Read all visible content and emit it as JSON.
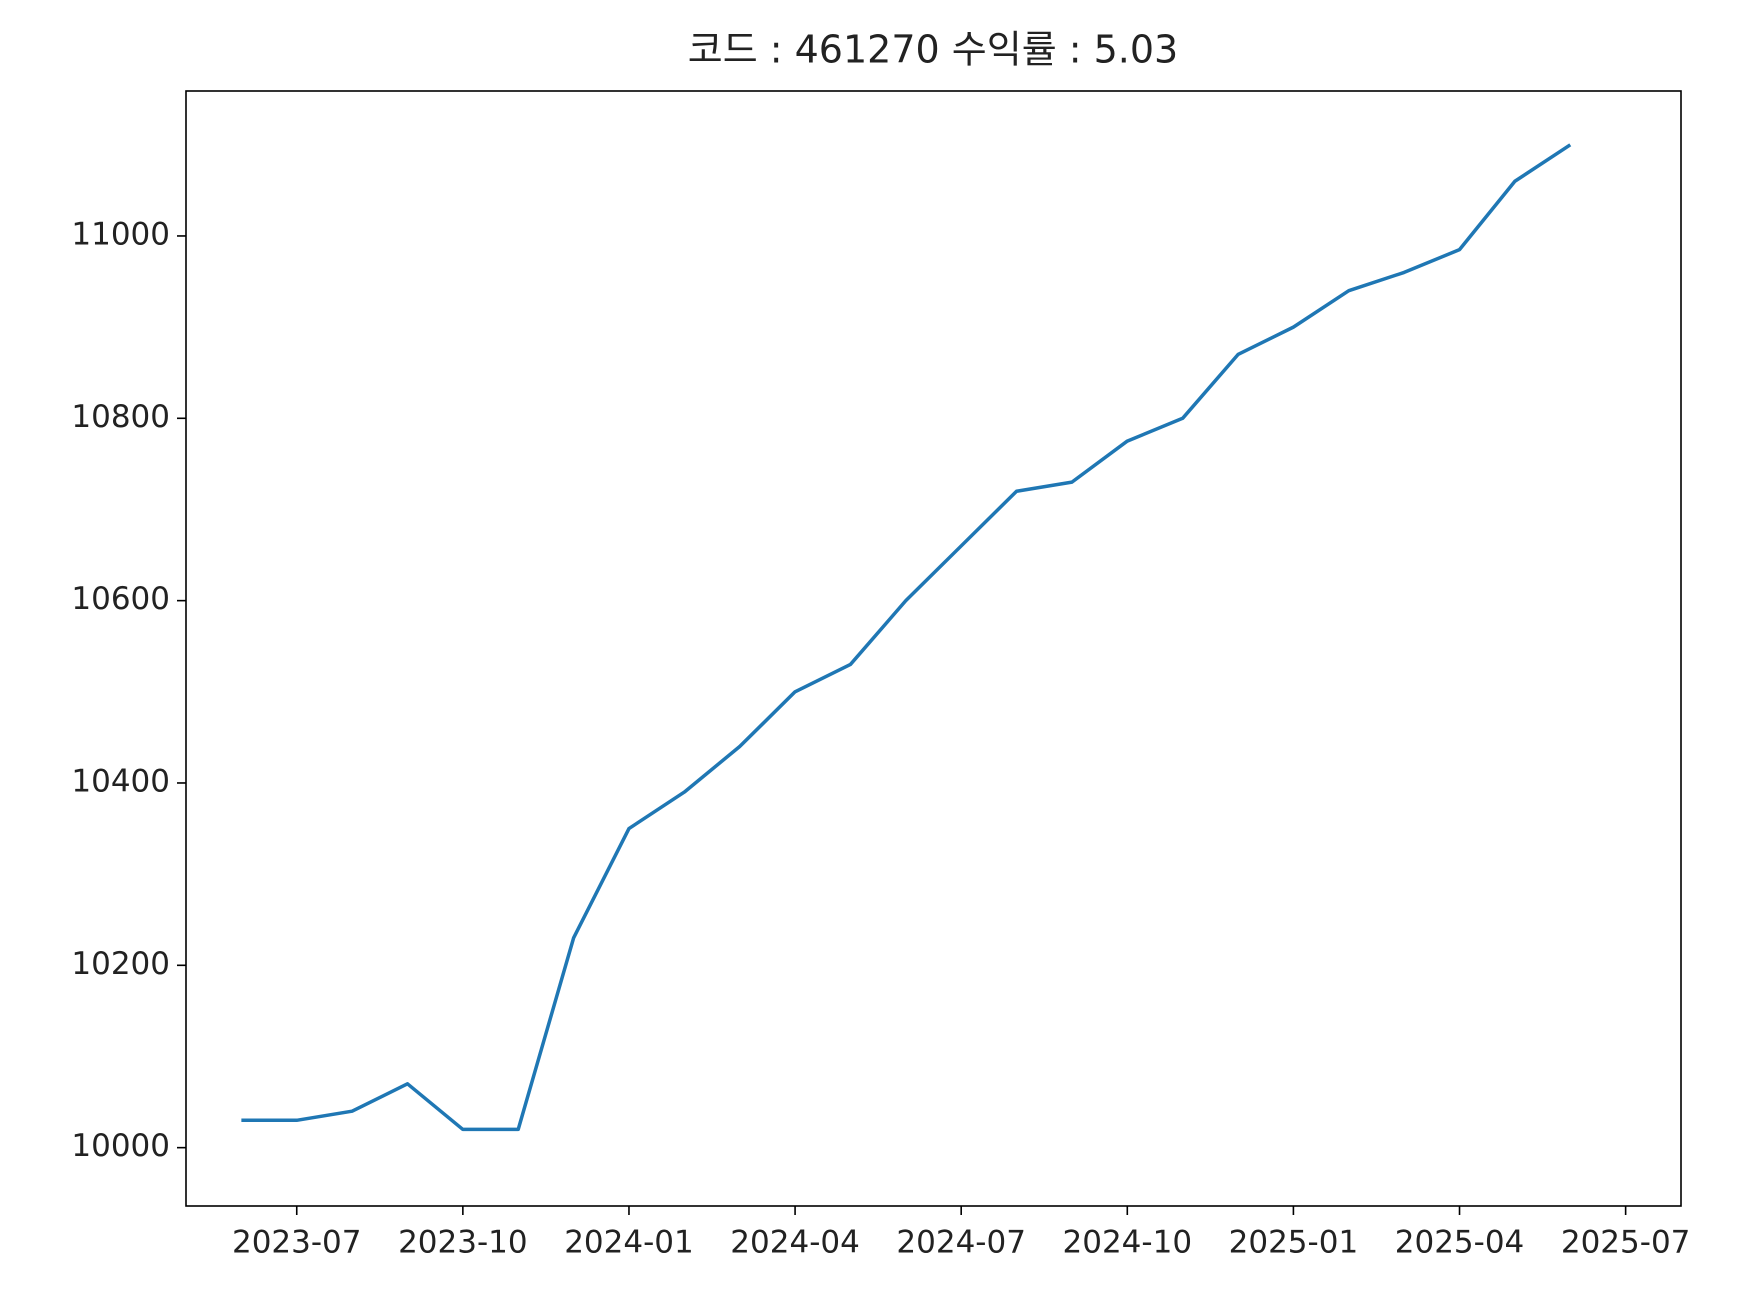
{
  "chart_data": {
    "type": "line",
    "title": "코드 : 461270 수익률 : 5.03",
    "x": [
      "2023-06",
      "2023-07",
      "2023-08",
      "2023-09",
      "2023-10",
      "2023-11",
      "2023-12",
      "2024-01",
      "2024-02",
      "2024-03",
      "2024-04",
      "2024-05",
      "2024-06",
      "2024-07",
      "2024-08",
      "2024-09",
      "2024-10",
      "2024-11",
      "2024-12",
      "2025-01",
      "2025-02",
      "2025-03",
      "2025-04",
      "2025-05",
      "2025-06"
    ],
    "series": [
      {
        "name": "461270",
        "color": "#1f77b4",
        "values": [
          10030,
          10030,
          10040,
          10070,
          10020,
          10020,
          10230,
          10350,
          10390,
          10440,
          10500,
          10530,
          10600,
          10660,
          10720,
          10730,
          10775,
          10800,
          10870,
          10900,
          10940,
          10960,
          10985,
          11060,
          11100
        ]
      }
    ],
    "xlim": [
      "2023-05",
      "2025-08"
    ],
    "xticks": [
      "2023-07",
      "2023-10",
      "2024-01",
      "2024-04",
      "2024-07",
      "2024-10",
      "2025-01",
      "2025-04",
      "2025-07"
    ],
    "ylim": [
      9936,
      11159
    ],
    "yticks": [
      10000,
      10200,
      10400,
      10600,
      10800,
      11000
    ],
    "grid": false
  }
}
